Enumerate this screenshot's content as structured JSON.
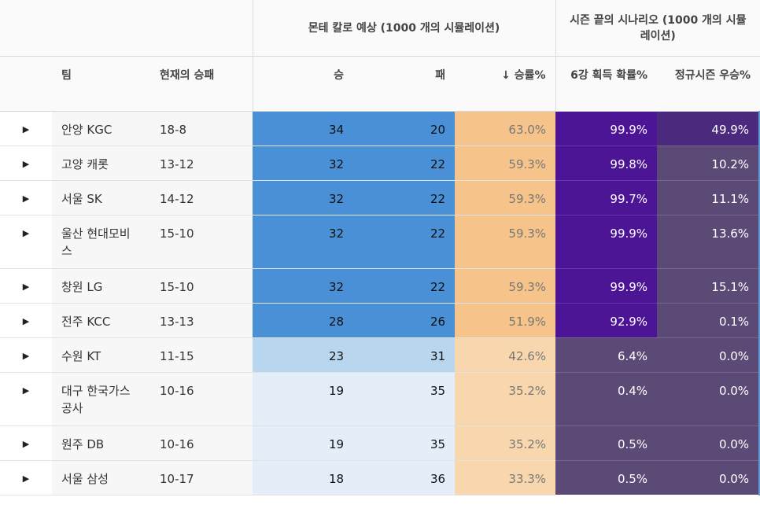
{
  "header": {
    "group_montecarlo": "몬테 칼로 예상 (1000 개의 시뮬레이션)",
    "group_season_end": "시즌 끝의 시나리오 (1000 개의 시뮬레이션)",
    "col_team": "팀",
    "col_record": "현재의 승패",
    "col_wins": "승",
    "col_losses": "패",
    "col_winpct": "↓ 승률%",
    "col_playoff": "6강 획득 확률%",
    "col_regular": "정규시즌 우승%"
  },
  "colors": {
    "wins_strong": "#4a90d6",
    "wins_mid": "#b9d6ef",
    "wins_light": "#e3eef9",
    "pct_high": "#f6c48a",
    "pct_low": "#f9d7ae",
    "playoff_strong": "#4c1596",
    "muted_purple": "#5c4a76",
    "accent_border": "#5b9bd5"
  },
  "rows": [
    {
      "team": "안양 KGC",
      "record": "18-8",
      "wins": "34",
      "losses": "20",
      "winpct": "63.0%",
      "playoff": "99.9%",
      "regular": "49.9%"
    },
    {
      "team": "고양 캐롯",
      "record": "13-12",
      "wins": "32",
      "losses": "22",
      "winpct": "59.3%",
      "playoff": "99.8%",
      "regular": "10.2%"
    },
    {
      "team": "서울 SK",
      "record": "14-12",
      "wins": "32",
      "losses": "22",
      "winpct": "59.3%",
      "playoff": "99.7%",
      "regular": "11.1%"
    },
    {
      "team": "울산 현대모비스",
      "record": "15-10",
      "wins": "32",
      "losses": "22",
      "winpct": "59.3%",
      "playoff": "99.9%",
      "regular": "13.6%"
    },
    {
      "team": "창원 LG",
      "record": "15-10",
      "wins": "32",
      "losses": "22",
      "winpct": "59.3%",
      "playoff": "99.9%",
      "regular": "15.1%"
    },
    {
      "team": "전주 KCC",
      "record": "13-13",
      "wins": "28",
      "losses": "26",
      "winpct": "51.9%",
      "playoff": "92.9%",
      "regular": "0.1%"
    },
    {
      "team": "수원 KT",
      "record": "11-15",
      "wins": "23",
      "losses": "31",
      "winpct": "42.6%",
      "playoff": "6.4%",
      "regular": "0.0%"
    },
    {
      "team": "대구 한국가스공사",
      "record": "10-16",
      "wins": "19",
      "losses": "35",
      "winpct": "35.2%",
      "playoff": "0.4%",
      "regular": "0.0%"
    },
    {
      "team": "원주 DB",
      "record": "10-16",
      "wins": "19",
      "losses": "35",
      "winpct": "35.2%",
      "playoff": "0.5%",
      "regular": "0.0%"
    },
    {
      "team": "서울 삼성",
      "record": "10-17",
      "wins": "18",
      "losses": "36",
      "winpct": "33.3%",
      "playoff": "0.5%",
      "regular": "0.0%"
    }
  ]
}
